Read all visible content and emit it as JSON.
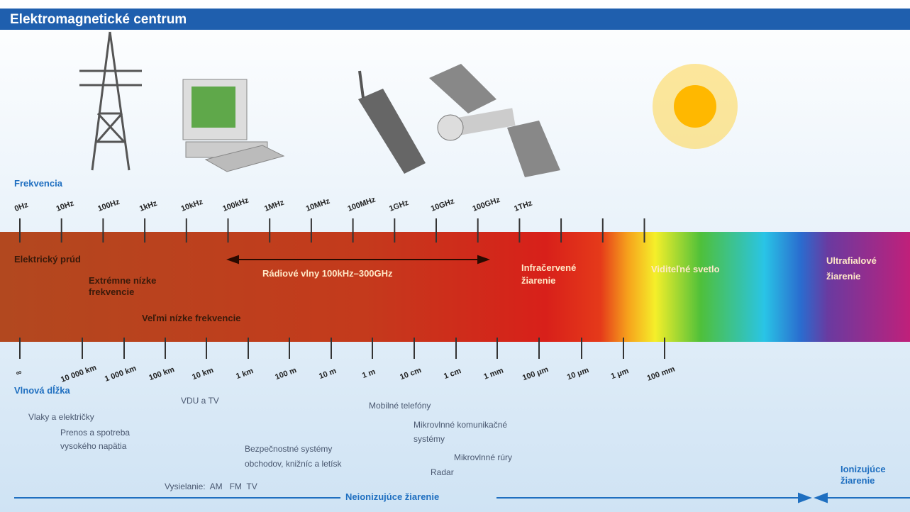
{
  "header": {
    "title": "Elektromagnetické centrum"
  },
  "frequency": {
    "label": "Frekvencia",
    "ticks": [
      "0Hz",
      "10Hz",
      "100Hz",
      "1kHz",
      "10kHz",
      "100kHz",
      "1MHz",
      "10MHz",
      "100MHz",
      "1GHz",
      "10GHz",
      "100GHz",
      "1THz"
    ]
  },
  "bands": {
    "electric": "Elektrický prúd",
    "elf": [
      "Extrémne nízke",
      "frekvencie"
    ],
    "vlf": "Veľmi nízke frekvencie",
    "radio": "Rádiové vlny 100kHz–300GHz",
    "infrared": [
      "Infračervené",
      "žiarenie"
    ],
    "visible": "Viditeľné svetlo",
    "ultraviolet": [
      "Ultrafialové",
      "žiarenie"
    ]
  },
  "wavelength": {
    "label": "Vlnová dĺžka",
    "ticks": [
      "∞",
      "10 000 km",
      "1 000 km",
      "100 km",
      "10 km",
      "1 km",
      "100 m",
      "10 m",
      "1 m",
      "10 cm",
      "1 cm",
      "1 mm",
      "100 μm",
      "10 μm",
      "1 μm",
      "100 mm"
    ]
  },
  "applications": {
    "trains": "Vlaky a električky",
    "power": [
      "Prenos a spotreba",
      "vysokého napätia"
    ],
    "vdu": "VDU a TV",
    "security": [
      "Bezpečnostné systémy",
      "obchodov, knižníc a letísk"
    ],
    "broadcast": "Vysielanie:  AM   FM  TV",
    "mobile": "Mobilné telefóny",
    "microwave_comm": [
      "Mikrovlnné komunikačné",
      "systémy"
    ],
    "microwave_oven": "Mikrovlnné rúry",
    "radar": "Radar"
  },
  "footer": {
    "non_ionizing": "Neionizujúce žiarenie",
    "ionizing": [
      "Ionizujúce",
      "žiarenie"
    ]
  }
}
